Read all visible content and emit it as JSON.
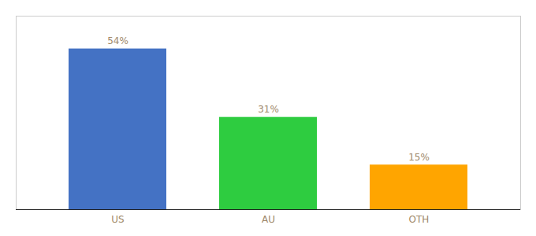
{
  "chart_data": {
    "type": "bar",
    "categories": [
      "US",
      "AU",
      "OTH"
    ],
    "values": [
      54,
      31,
      15
    ],
    "colors": [
      "#4472C4",
      "#2ECC40",
      "#FFA500"
    ],
    "value_labels": [
      "54%",
      "31%",
      "15%"
    ],
    "data_labels": true,
    "ylim": [
      0,
      65
    ],
    "tick_labels": "x"
  }
}
